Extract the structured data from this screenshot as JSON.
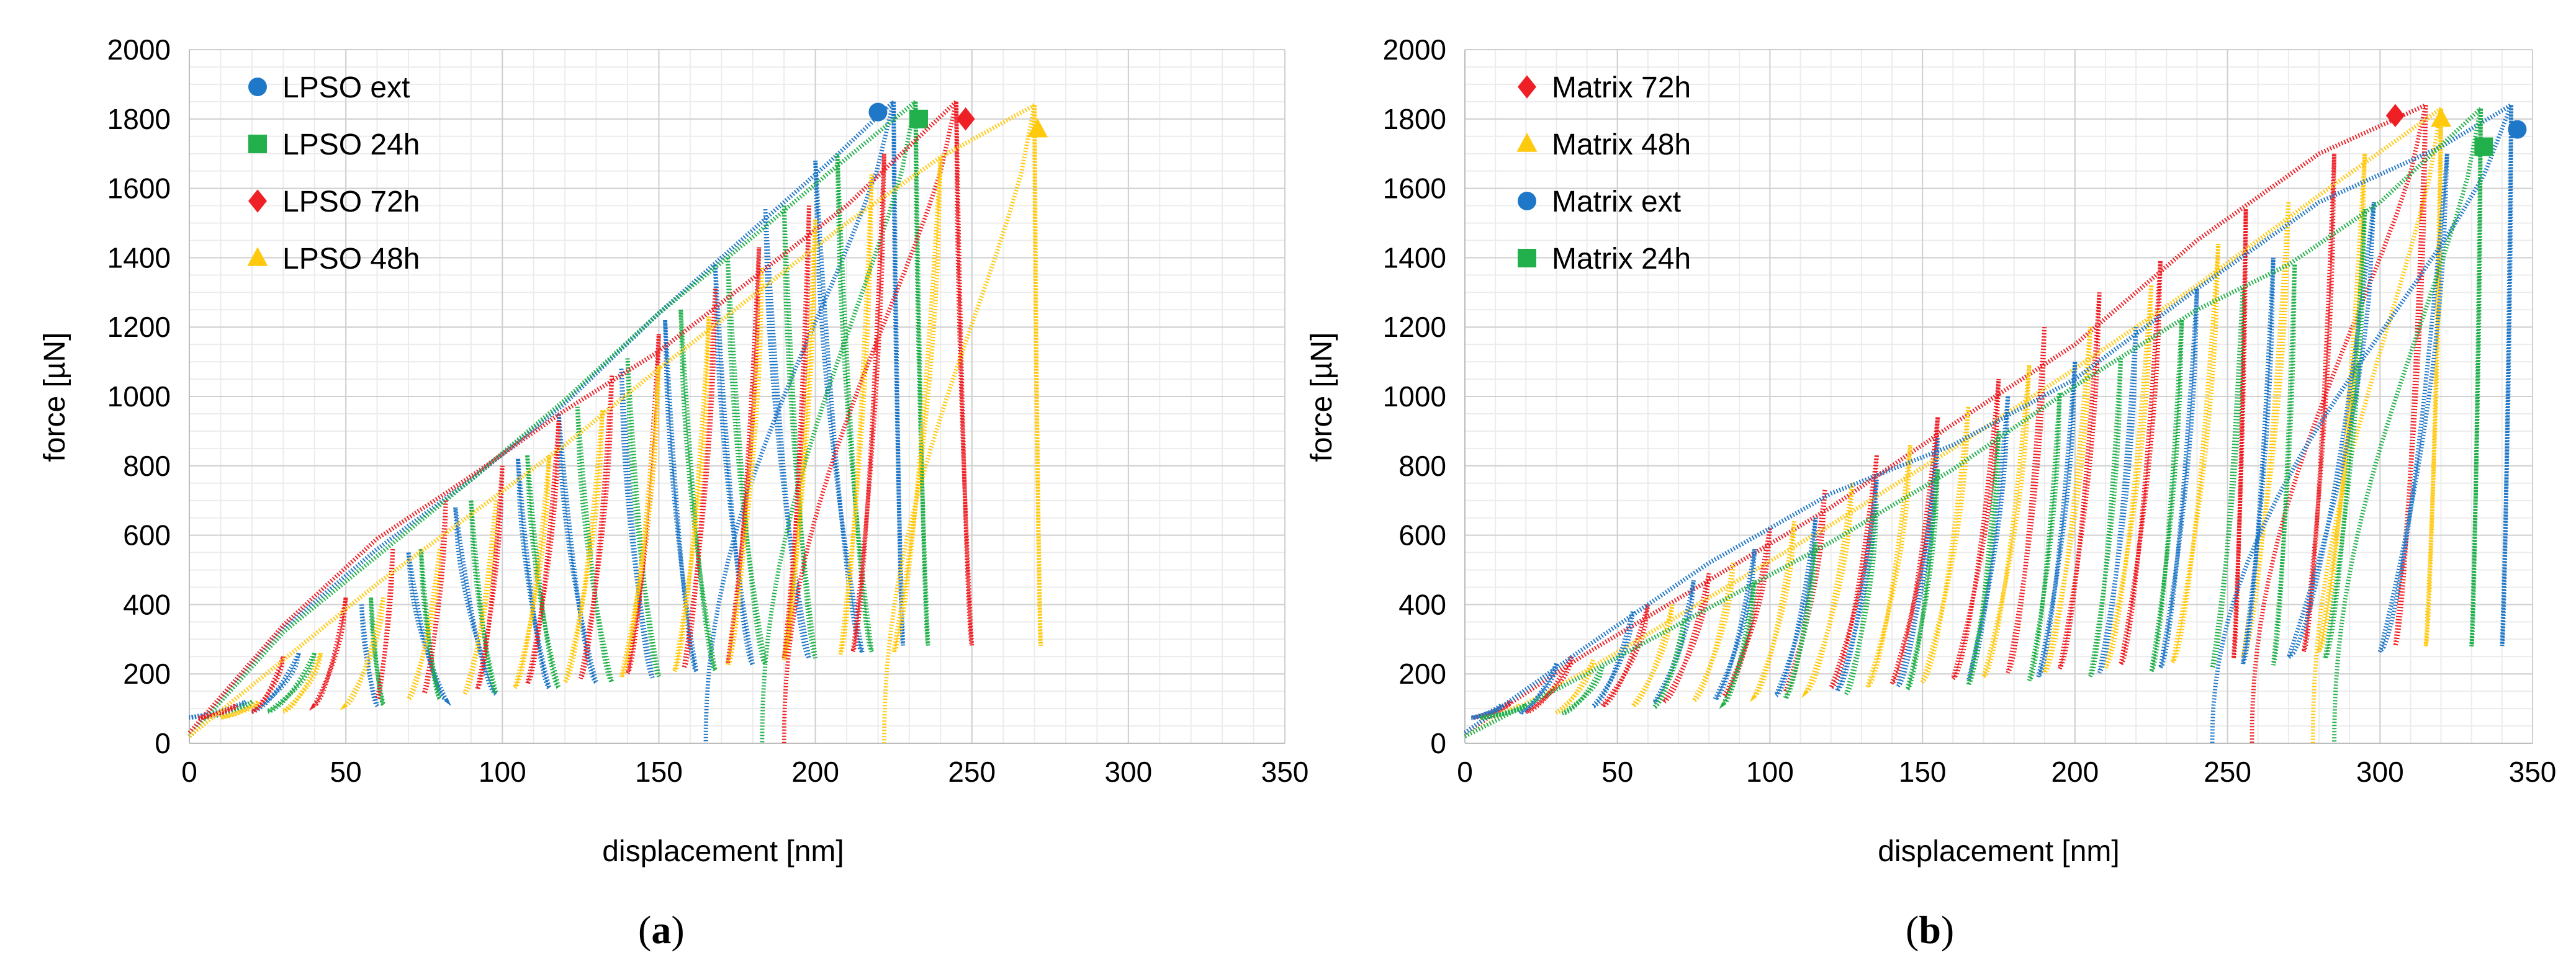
{
  "chart_data": [
    {
      "id": "a",
      "type": "scatter",
      "panel_label": "a",
      "xlabel": "displacement [nm]",
      "ylabel": "force [µN]",
      "xlim": [
        0,
        350
      ],
      "ylim": [
        0,
        2000
      ],
      "xticks": [
        0,
        50,
        100,
        150,
        200,
        250,
        300,
        350
      ],
      "yticks": [
        0,
        200,
        400,
        600,
        800,
        1000,
        1200,
        1400,
        1600,
        1800,
        2000
      ],
      "legend_position": "top-left",
      "series": [
        {
          "name": "LPSO ext",
          "color": "#1f77c8",
          "marker": "circle",
          "marker_point": [
            220,
            1820
          ],
          "loading": [
            [
              0,
              20
            ],
            [
              30,
              330
            ],
            [
              60,
              560
            ],
            [
              90,
              760
            ],
            [
              120,
              980
            ],
            [
              150,
              1240
            ],
            [
              180,
              1480
            ],
            [
              205,
              1680
            ],
            [
              225,
              1850
            ]
          ],
          "cycles": [
            [
              18,
              120,
              0
            ],
            [
              35,
              260,
              20
            ],
            [
              55,
              400,
              60
            ],
            [
              70,
              550,
              82
            ],
            [
              85,
              680,
              98
            ],
            [
              105,
              820,
              115
            ],
            [
              118,
              950,
              130
            ],
            [
              138,
              1080,
              148
            ],
            [
              152,
              1220,
              162
            ],
            [
              168,
              1380,
              180
            ],
            [
              184,
              1540,
              198
            ],
            [
              200,
              1680,
              215
            ],
            [
              225,
              1850,
              228
            ]
          ],
          "final_unload": [
            165,
            0
          ]
        },
        {
          "name": "LPSO 24h",
          "color": "#21b04b",
          "marker": "square",
          "marker_point": [
            233,
            1800
          ],
          "loading": [
            [
              0,
              20
            ],
            [
              30,
              320
            ],
            [
              60,
              540
            ],
            [
              90,
              760
            ],
            [
              120,
              990
            ],
            [
              150,
              1240
            ],
            [
              180,
              1460
            ],
            [
              205,
              1650
            ],
            [
              232,
              1850
            ]
          ],
          "cycles": [
            [
              20,
              120,
              5
            ],
            [
              40,
              260,
              25
            ],
            [
              58,
              420,
              62
            ],
            [
              74,
              560,
              80
            ],
            [
              90,
              700,
              98
            ],
            [
              108,
              830,
              118
            ],
            [
              124,
              970,
              135
            ],
            [
              140,
              1110,
              150
            ],
            [
              157,
              1250,
              168
            ],
            [
              172,
              1400,
              184
            ],
            [
              190,
              1550,
              200
            ],
            [
              207,
              1700,
              218
            ],
            [
              232,
              1850,
              236
            ]
          ],
          "final_unload": [
            183,
            0
          ]
        },
        {
          "name": "LPSO 72h",
          "color": "#ee1f25",
          "marker": "diamond",
          "marker_point": [
            248,
            1800
          ],
          "loading": [
            [
              0,
              30
            ],
            [
              30,
              340
            ],
            [
              60,
              590
            ],
            [
              90,
              770
            ],
            [
              120,
              960
            ],
            [
              150,
              1130
            ],
            [
              180,
              1340
            ],
            [
              210,
              1550
            ],
            [
              245,
              1850
            ]
          ],
          "cycles": [
            [
              15,
              110,
              3
            ],
            [
              30,
              250,
              20
            ],
            [
              50,
              420,
              40
            ],
            [
              65,
              560,
              60
            ],
            [
              82,
              700,
              75
            ],
            [
              100,
              800,
              92
            ],
            [
              118,
              930,
              108
            ],
            [
              135,
              1060,
              125
            ],
            [
              150,
              1180,
              140
            ],
            [
              168,
              1310,
              158
            ],
            [
              182,
              1430,
              172
            ],
            [
              198,
              1550,
              190
            ],
            [
              222,
              1700,
              212
            ],
            [
              245,
              1850,
              250
            ]
          ],
          "final_unload": [
            190,
            0
          ]
        },
        {
          "name": "LPSO 48h",
          "color": "#ffc90e",
          "marker": "triangle",
          "marker_point": [
            271,
            1770
          ],
          "loading": [
            [
              0,
              20
            ],
            [
              30,
              240
            ],
            [
              60,
              460
            ],
            [
              90,
              660
            ],
            [
              120,
              860
            ],
            [
              150,
              1080
            ],
            [
              180,
              1290
            ],
            [
              210,
              1500
            ],
            [
              240,
              1690
            ],
            [
              270,
              1840
            ]
          ],
          "cycles": [
            [
              22,
              120,
              10
            ],
            [
              42,
              260,
              30
            ],
            [
              62,
              420,
              50
            ],
            [
              80,
              560,
              70
            ],
            [
              98,
              700,
              88
            ],
            [
              115,
              830,
              104
            ],
            [
              132,
              960,
              120
            ],
            [
              150,
              1090,
              138
            ],
            [
              166,
              1230,
              155
            ],
            [
              183,
              1370,
              172
            ],
            [
              200,
              1510,
              190
            ],
            [
              218,
              1640,
              208
            ],
            [
              240,
              1690,
              225
            ],
            [
              270,
              1840,
              272
            ]
          ],
          "final_unload": [
            222,
            0
          ]
        }
      ]
    },
    {
      "id": "b",
      "type": "scatter",
      "panel_label": "b",
      "xlabel": "displacement [nm]",
      "ylabel": "force [µN]",
      "xlim": [
        0,
        350
      ],
      "ylim": [
        0,
        2000
      ],
      "xticks": [
        0,
        50,
        100,
        150,
        200,
        250,
        300,
        350
      ],
      "yticks": [
        0,
        200,
        400,
        600,
        800,
        1000,
        1200,
        1400,
        1600,
        1800,
        2000
      ],
      "legend_position": "top-left",
      "series": [
        {
          "name": "Matrix 72h",
          "color": "#ee1f25",
          "marker": "diamond",
          "marker_point": [
            305,
            1810
          ],
          "loading": [
            [
              0,
              30
            ],
            [
              40,
              260
            ],
            [
              80,
              470
            ],
            [
              120,
              680
            ],
            [
              160,
              920
            ],
            [
              200,
              1150
            ],
            [
              240,
              1450
            ],
            [
              280,
              1700
            ],
            [
              315,
              1840
            ]
          ],
          "cycles": [
            [
              15,
              120,
              3
            ],
            [
              35,
              250,
              20
            ],
            [
              60,
              400,
              45
            ],
            [
              80,
              490,
              65
            ],
            [
              100,
              620,
              85
            ],
            [
              118,
              730,
              105
            ],
            [
              135,
              830,
              120
            ],
            [
              155,
              940,
              140
            ],
            [
              175,
              1050,
              160
            ],
            [
              190,
              1200,
              178
            ],
            [
              208,
              1300,
              195
            ],
            [
              228,
              1390,
              215
            ],
            [
              256,
              1540,
              252
            ],
            [
              285,
              1700,
              275
            ],
            [
              315,
              1840,
              305
            ]
          ],
          "final_unload": [
            258,
            0
          ]
        },
        {
          "name": "Matrix 48h",
          "color": "#ffc90e",
          "marker": "triangle",
          "marker_point": [
            320,
            1800
          ],
          "loading": [
            [
              0,
              20
            ],
            [
              40,
              210
            ],
            [
              80,
              420
            ],
            [
              120,
              630
            ],
            [
              160,
              850
            ],
            [
              200,
              1080
            ],
            [
              240,
              1320
            ],
            [
              280,
              1580
            ],
            [
              320,
              1830
            ]
          ],
          "cycles": [
            [
              18,
              110,
              5
            ],
            [
              42,
              240,
              30
            ],
            [
              68,
              400,
              55
            ],
            [
              88,
              520,
              75
            ],
            [
              108,
              640,
              95
            ],
            [
              127,
              750,
              112
            ],
            [
              146,
              860,
              132
            ],
            [
              165,
              970,
              150
            ],
            [
              185,
              1090,
              170
            ],
            [
              205,
              1200,
              190
            ],
            [
              225,
              1320,
              210
            ],
            [
              247,
              1440,
              232
            ],
            [
              270,
              1560,
              255
            ],
            [
              295,
              1700,
              280
            ],
            [
              320,
              1830,
              315
            ]
          ],
          "final_unload": [
            278,
            0
          ]
        },
        {
          "name": "Matrix ext",
          "color": "#1f77c8",
          "marker": "circle",
          "marker_point": [
            345,
            1770
          ],
          "loading": [
            [
              0,
              30
            ],
            [
              40,
              280
            ],
            [
              80,
              520
            ],
            [
              120,
              720
            ],
            [
              160,
              860
            ],
            [
              200,
              1050
            ],
            [
              240,
              1310
            ],
            [
              280,
              1560
            ],
            [
              320,
              1720
            ],
            [
              343,
              1840
            ]
          ],
          "cycles": [
            [
              12,
              110,
              2
            ],
            [
              30,
              230,
              18
            ],
            [
              55,
              380,
              42
            ],
            [
              75,
              470,
              62
            ],
            [
              95,
              560,
              82
            ],
            [
              115,
              650,
              102
            ],
            [
              135,
              760,
              122
            ],
            [
              155,
              880,
              142
            ],
            [
              178,
              1000,
              165
            ],
            [
              200,
              1100,
              188
            ],
            [
              220,
              1200,
              208
            ],
            [
              240,
              1310,
              228
            ],
            [
              265,
              1400,
              255
            ],
            [
              298,
              1560,
              270
            ],
            [
              322,
              1700,
              300
            ],
            [
              343,
              1840,
              340
            ]
          ],
          "final_unload": [
            245,
            0
          ]
        },
        {
          "name": "Matrix 24h",
          "color": "#21b04b",
          "marker": "square",
          "marker_point": [
            334,
            1720
          ],
          "loading": [
            [
              0,
              20
            ],
            [
              40,
              200
            ],
            [
              80,
              390
            ],
            [
              120,
              580
            ],
            [
              160,
              790
            ],
            [
              200,
              1030
            ],
            [
              240,
              1250
            ],
            [
              270,
              1380
            ],
            [
              300,
              1560
            ],
            [
              333,
              1830
            ]
          ],
          "cycles": [
            [
              20,
              110,
              5
            ],
            [
              45,
              220,
              32
            ],
            [
              72,
              360,
              62
            ],
            [
              95,
              470,
              85
            ],
            [
              115,
              580,
              105
            ],
            [
              135,
              690,
              125
            ],
            [
              155,
              790,
              145
            ],
            [
              175,
              900,
              165
            ],
            [
              195,
              1010,
              185
            ],
            [
              215,
              1110,
              205
            ],
            [
              235,
              1220,
              225
            ],
            [
              255,
              1310,
              245
            ],
            [
              272,
              1380,
              265
            ],
            [
              295,
              1540,
              282
            ],
            [
              333,
              1830,
              330
            ]
          ],
          "final_unload": [
            285,
            0
          ]
        }
      ]
    }
  ]
}
